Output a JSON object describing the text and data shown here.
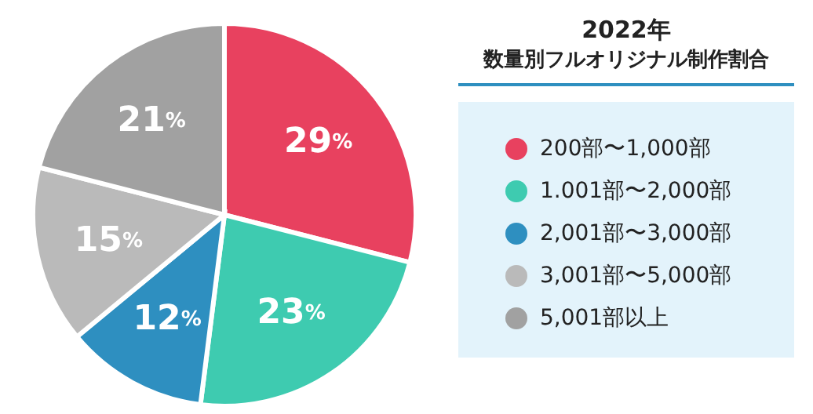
{
  "chart_data": {
    "type": "pie",
    "title": "2022年",
    "subtitle": "数量別フルオリジナル制作割合",
    "categories": [
      "200部〜1,000部",
      "1.001部〜2,000部",
      "2,001部〜3,000部",
      "3,001部〜5,000部",
      "5,001部以上"
    ],
    "values": [
      29,
      23,
      12,
      15,
      21
    ],
    "colors": [
      "#e8415f",
      "#3ecbb0",
      "#2e8fc0",
      "#bababa",
      "#a1a1a1"
    ],
    "value_labels": [
      "29%",
      "23%",
      "12%",
      "15%",
      "21%"
    ],
    "legend": "right"
  }
}
